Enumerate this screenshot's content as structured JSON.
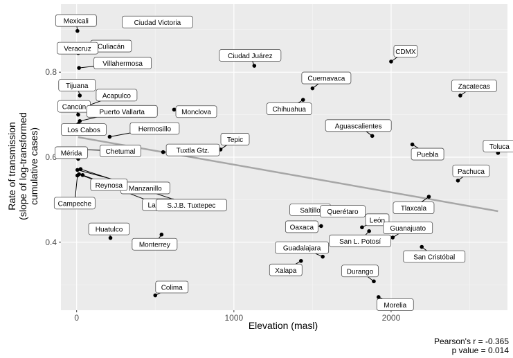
{
  "chart_data": {
    "type": "scatter",
    "xlabel": "Elevation (masl)",
    "ylabel_line1": "Rate of transmission",
    "ylabel_line2": "(slope of log-transformed",
    "ylabel_line3": "cumulative cases)",
    "xlim": [
      -100,
      2740
    ],
    "ylim": [
      0.24,
      0.96
    ],
    "x_ticks": [
      0,
      1000,
      2000
    ],
    "y_ticks": [
      0.4,
      0.6,
      0.8
    ],
    "grid": true,
    "background": "#ebebeb",
    "point_color": "#000000",
    "trend_color": "#a6a6a6",
    "trendline": {
      "x": [
        10,
        2680
      ],
      "y": [
        0.647,
        0.473
      ]
    },
    "points": [
      {
        "label": "Mexicali",
        "x": 5,
        "y": 0.897
      },
      {
        "label": "Ciudad Victoria",
        "x": 320,
        "y": 0.918
      },
      {
        "label": "Culiacán",
        "x": 100,
        "y": 0.863
      },
      {
        "label": "Veracruz",
        "x": 10,
        "y": 0.845
      },
      {
        "label": "Villahermosa",
        "x": 15,
        "y": 0.81
      },
      {
        "label": "Ciudad Juárez",
        "x": 1130,
        "y": 0.815
      },
      {
        "label": "CDMX",
        "x": 2000,
        "y": 0.825
      },
      {
        "label": "Cuernavaca",
        "x": 1500,
        "y": 0.762
      },
      {
        "label": "Zacatecas",
        "x": 2440,
        "y": 0.745
      },
      {
        "label": "Tijuana",
        "x": 20,
        "y": 0.745
      },
      {
        "label": "Acapulco",
        "x": 25,
        "y": 0.715
      },
      {
        "label": "Chihuahua",
        "x": 1440,
        "y": 0.735
      },
      {
        "label": "Cancún",
        "x": 10,
        "y": 0.7
      },
      {
        "label": "Puerto Vallarta",
        "x": 20,
        "y": 0.685
      },
      {
        "label": "Monclova",
        "x": 620,
        "y": 0.712
      },
      {
        "label": "Los Cabos",
        "x": 10,
        "y": 0.678
      },
      {
        "label": "Aguascalientes",
        "x": 1880,
        "y": 0.65
      },
      {
        "label": "Hermosillo",
        "x": 210,
        "y": 0.648
      },
      {
        "label": "Puebla",
        "x": 2135,
        "y": 0.63
      },
      {
        "label": "Toluca",
        "x": 2680,
        "y": 0.61
      },
      {
        "label": "Tepic",
        "x": 915,
        "y": 0.618
      },
      {
        "label": "Chetumal",
        "x": 10,
        "y": 0.618
      },
      {
        "label": "Tuxtla Gtz.",
        "x": 550,
        "y": 0.612
      },
      {
        "label": "Mérida",
        "x": 10,
        "y": 0.596
      },
      {
        "label": "Pachuca",
        "x": 2425,
        "y": 0.545
      },
      {
        "label": "Manzanillo",
        "x": 5,
        "y": 0.57
      },
      {
        "label": "La Paz",
        "x": 15,
        "y": 0.56
      },
      {
        "label": "Reynosa",
        "x": 38,
        "y": 0.558
      },
      {
        "label": "Campeche",
        "x": 5,
        "y": 0.557
      },
      {
        "label": "S.J.B. Tuxtepec",
        "x": 25,
        "y": 0.572
      },
      {
        "label": "Tlaxcala",
        "x": 2240,
        "y": 0.507
      },
      {
        "label": "Saltillo",
        "x": 1600,
        "y": 0.478
      },
      {
        "label": "León",
        "x": 1815,
        "y": 0.435
      },
      {
        "label": "Querétaro",
        "x": 1820,
        "y": 0.463
      },
      {
        "label": "Oaxaca",
        "x": 1555,
        "y": 0.438
      },
      {
        "label": "San L. Potosí",
        "x": 1860,
        "y": 0.426
      },
      {
        "label": "Guanajuato",
        "x": 2010,
        "y": 0.411
      },
      {
        "label": "Huatulco",
        "x": 215,
        "y": 0.41
      },
      {
        "label": "Monterrey",
        "x": 540,
        "y": 0.418
      },
      {
        "label": "San Cristóbal",
        "x": 2195,
        "y": 0.389
      },
      {
        "label": "Guadalajara",
        "x": 1565,
        "y": 0.366
      },
      {
        "label": "Xalapa",
        "x": 1427,
        "y": 0.356
      },
      {
        "label": "Durango",
        "x": 1890,
        "y": 0.308
      },
      {
        "label": "Colima",
        "x": 500,
        "y": 0.275
      },
      {
        "label": "Morelia",
        "x": 1920,
        "y": 0.271
      }
    ]
  },
  "stats": {
    "r_line": "Pearson's r = -0.365",
    "p_line": "p value = 0.014"
  }
}
